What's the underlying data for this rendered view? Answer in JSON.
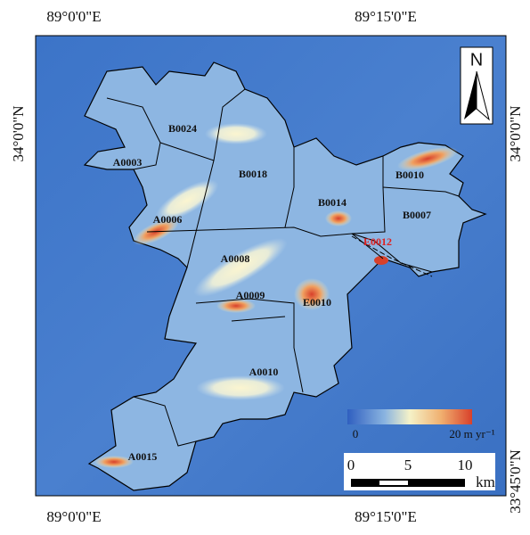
{
  "map": {
    "frame_labels": {
      "top": [
        "89°0'0\"E",
        "89°15'0\"E"
      ],
      "bottom": [
        "89°0'0\"E",
        "89°15'0\"E"
      ],
      "left": [
        "34°0'0\"N"
      ],
      "right": [
        "34°0'0\"N",
        "33°45'0\"N"
      ]
    },
    "north_arrow": "N",
    "glaciers": [
      "B0024",
      "A0003",
      "B0018",
      "A0006",
      "B0014",
      "B0010",
      "B0007",
      "E0012",
      "A0008",
      "A0009",
      "E0010",
      "A0010",
      "A0015"
    ],
    "colorbar": {
      "min_label": "0",
      "max_label": "20 m yr⁻¹"
    },
    "scale_bar": {
      "ticks": [
        "0",
        "5",
        "10"
      ],
      "unit": "km"
    }
  }
}
